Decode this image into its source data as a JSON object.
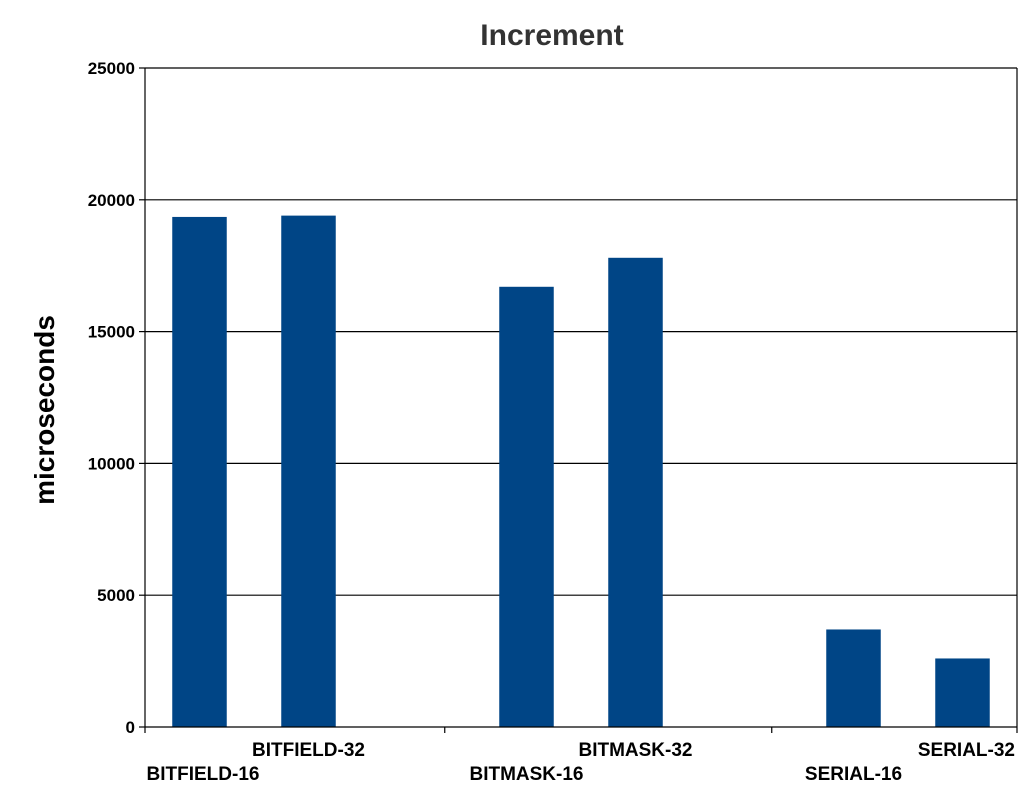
{
  "chart_data": {
    "type": "bar",
    "title": "Increment",
    "xlabel": "",
    "ylabel": "microseconds",
    "categories": [
      "BITFIELD-16",
      "BITFIELD-32",
      "BITMASK-16",
      "BITMASK-32",
      "SERIAL-16",
      "SERIAL-32"
    ],
    "values": [
      19350,
      19400,
      16700,
      17800,
      3700,
      2600
    ],
    "ylim": [
      0,
      25000
    ],
    "yticks": [
      0,
      5000,
      10000,
      15000,
      20000,
      25000
    ],
    "grid": true,
    "legend": "none",
    "colors": {
      "bar": "#004586",
      "grid": "#000000",
      "axis": "#000000"
    }
  }
}
